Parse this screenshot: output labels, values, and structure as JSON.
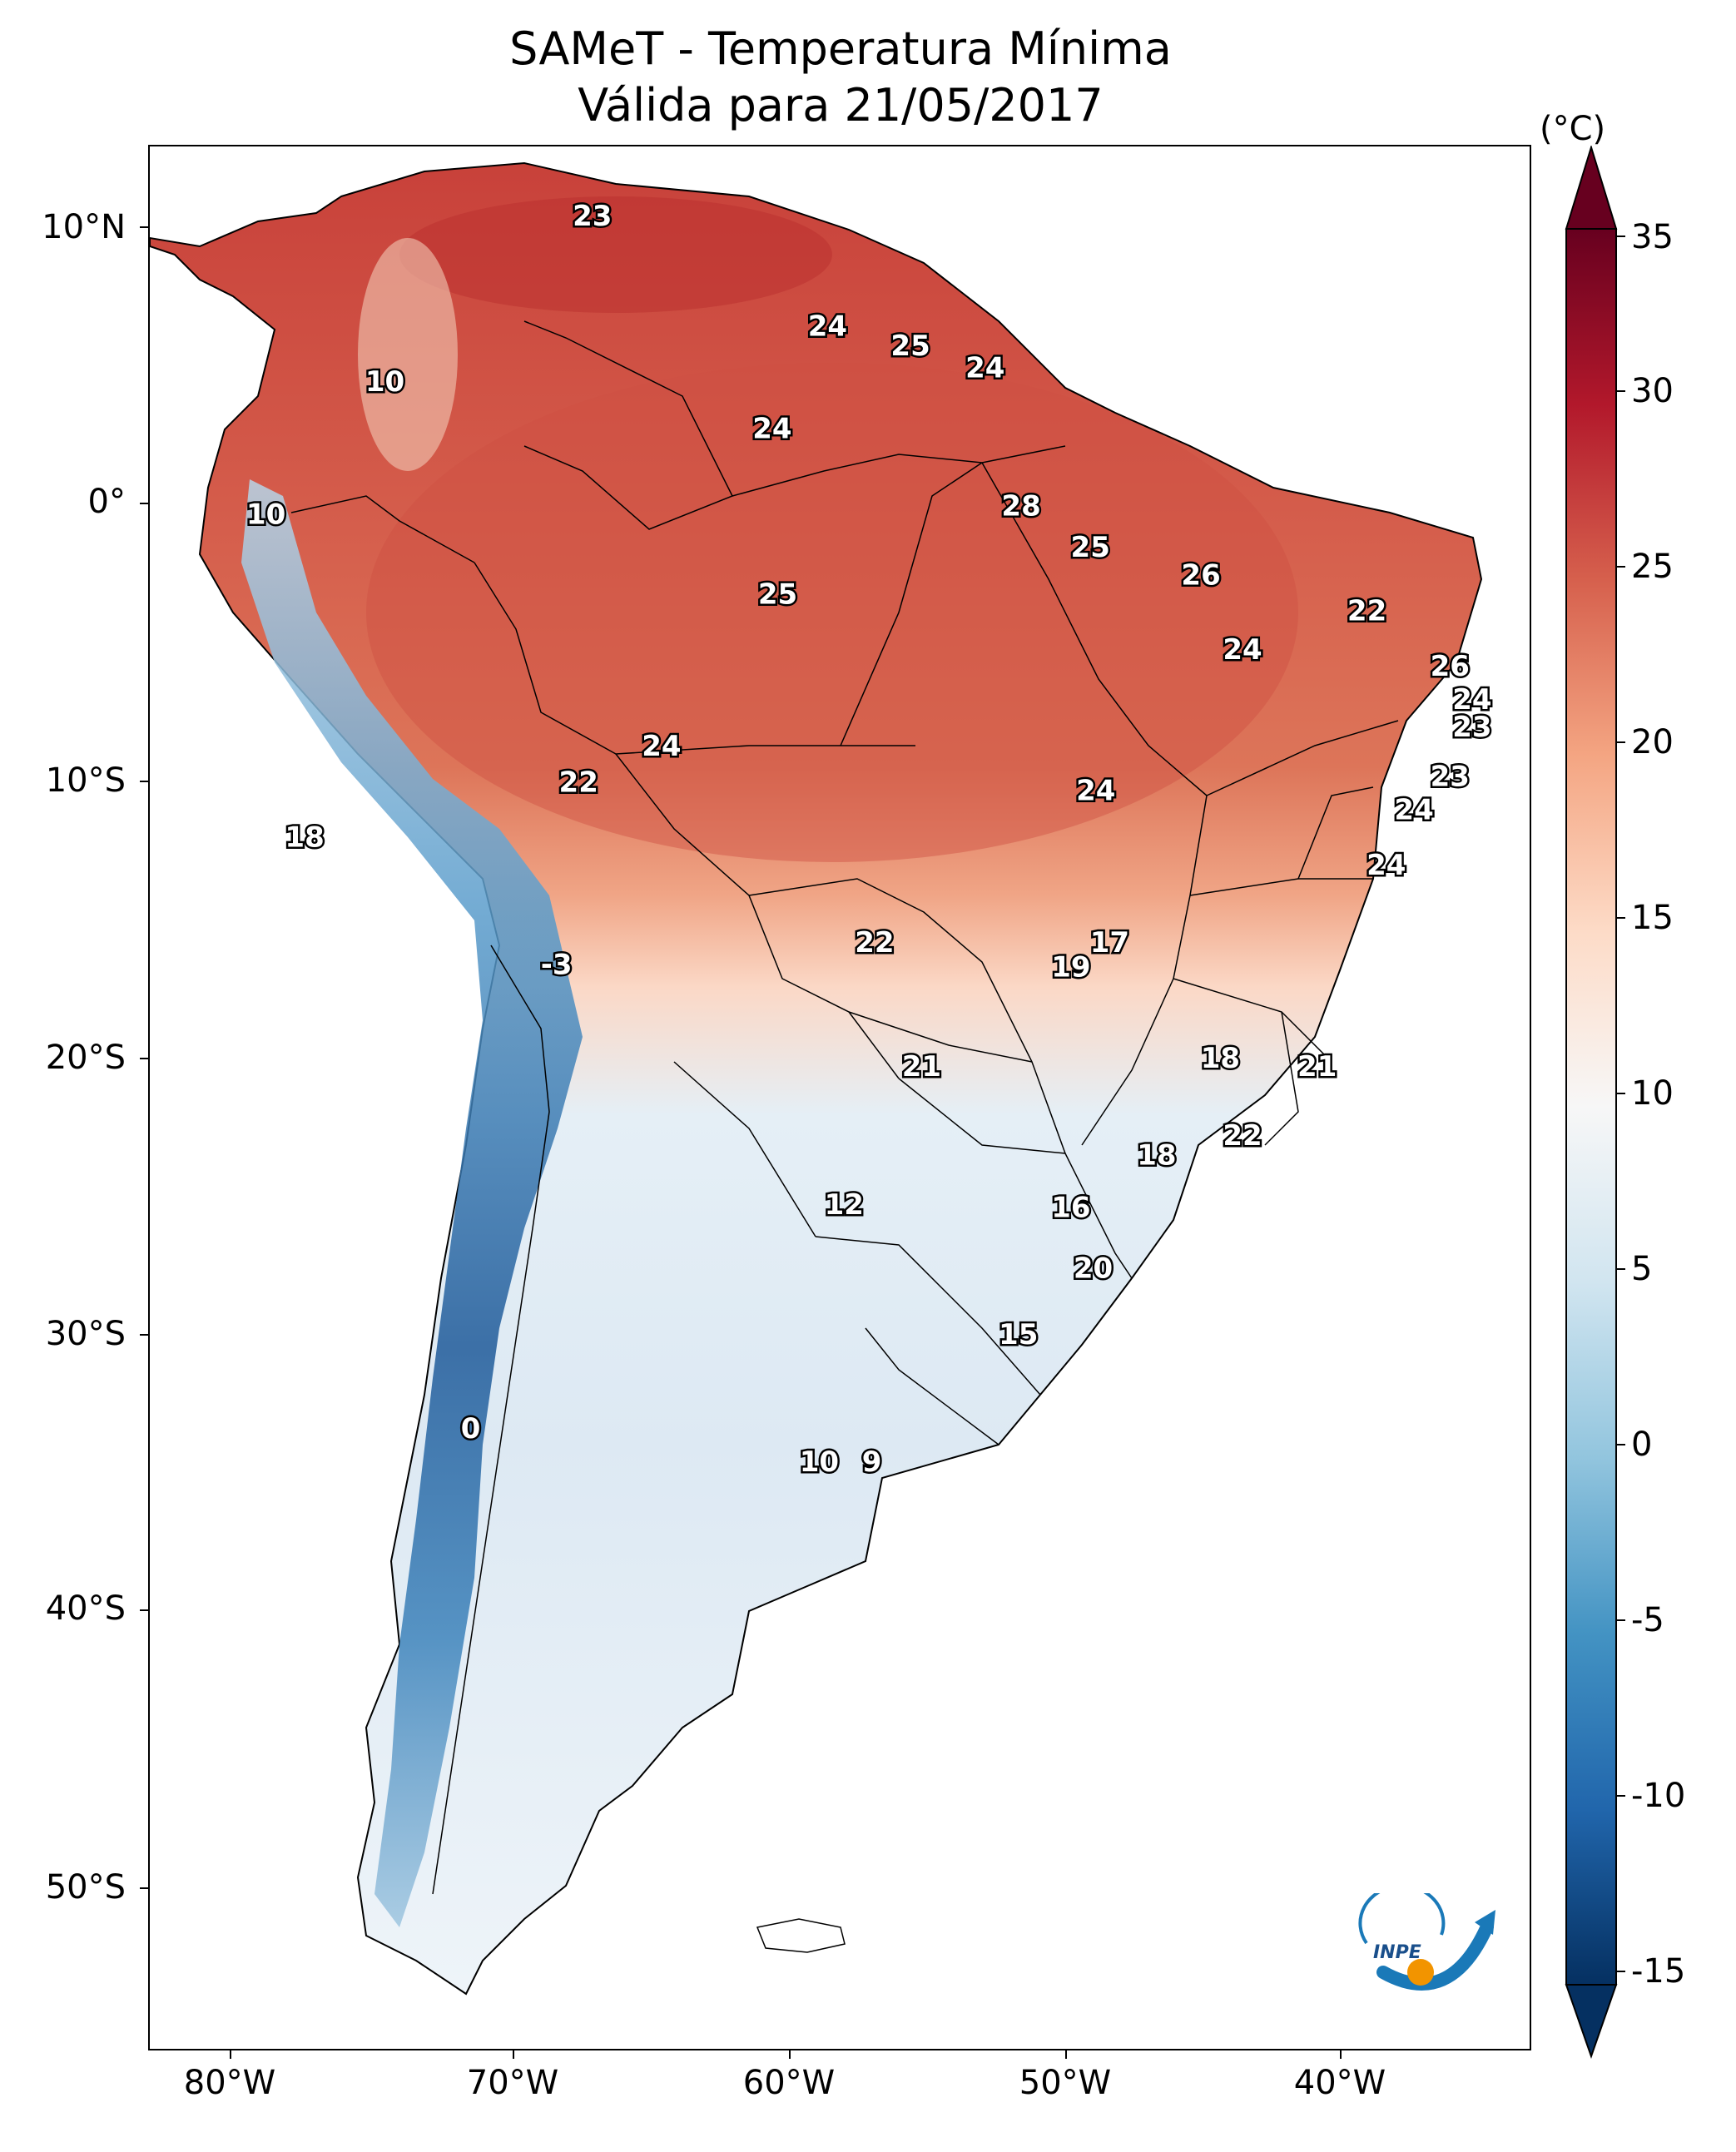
{
  "title_line1": "SAMeT - Temperatura Mínima",
  "title_line2": "Válida para 21/05/2017",
  "lat_ticks": [
    "10°N",
    "0°",
    "10°S",
    "20°S",
    "30°S",
    "40°S",
    "50°S"
  ],
  "lon_ticks": [
    "80°W",
    "70°W",
    "60°W",
    "50°W",
    "40°W"
  ],
  "colorbar": {
    "unit": "(°C)",
    "ticks": [
      "35",
      "30",
      "25",
      "20",
      "15",
      "10",
      "5",
      "0",
      "-5",
      "-10",
      "-15"
    ],
    "min": -15,
    "max": 35,
    "colormap": "RdBu_r",
    "colors": [
      "#053061",
      "#2166ac",
      "#4393c3",
      "#92c5de",
      "#d1e5f0",
      "#f7f7f7",
      "#fddbc7",
      "#f4a582",
      "#d6604d",
      "#b2182b",
      "#67001f"
    ]
  },
  "map": {
    "lon_range": [
      -83,
      -33
    ],
    "lat_range": [
      -56,
      13
    ],
    "points": [
      {
        "label": "23",
        "lon": -67,
        "lat": 10.5
      },
      {
        "label": "10",
        "lon": -74.5,
        "lat": 4.5
      },
      {
        "label": "24",
        "lon": -58.5,
        "lat": 6.5
      },
      {
        "label": "25",
        "lon": -55.5,
        "lat": 5.8
      },
      {
        "label": "24",
        "lon": -52.8,
        "lat": 5
      },
      {
        "label": "24",
        "lon": -60.5,
        "lat": 2.8
      },
      {
        "label": "10",
        "lon": -78.8,
        "lat": -0.3
      },
      {
        "label": "28",
        "lon": -51.5,
        "lat": 0
      },
      {
        "label": "25",
        "lon": -49,
        "lat": -1.5
      },
      {
        "label": "26",
        "lon": -45,
        "lat": -2.5
      },
      {
        "label": "22",
        "lon": -39,
        "lat": -3.8
      },
      {
        "label": "25",
        "lon": -60.3,
        "lat": -3.2
      },
      {
        "label": "24",
        "lon": -43.5,
        "lat": -5.2
      },
      {
        "label": "26",
        "lon": -36,
        "lat": -5.8
      },
      {
        "label": "24",
        "lon": -35.2,
        "lat": -7
      },
      {
        "label": "23",
        "lon": -35.2,
        "lat": -8
      },
      {
        "label": "24",
        "lon": -64.5,
        "lat": -8.7
      },
      {
        "label": "22",
        "lon": -67.5,
        "lat": -10
      },
      {
        "label": "24",
        "lon": -48.8,
        "lat": -10.3
      },
      {
        "label": "23",
        "lon": -36,
        "lat": -9.8
      },
      {
        "label": "24",
        "lon": -37.3,
        "lat": -11
      },
      {
        "label": "18",
        "lon": -77.4,
        "lat": -12
      },
      {
        "label": "24",
        "lon": -38.3,
        "lat": -13
      },
      {
        "label": "22",
        "lon": -56.8,
        "lat": -15.8
      },
      {
        "label": "17",
        "lon": -48.3,
        "lat": -15.8
      },
      {
        "label": "19",
        "lon": -49.7,
        "lat": -16.7
      },
      {
        "label": "-3",
        "lon": -68.3,
        "lat": -16.6
      },
      {
        "label": "21",
        "lon": -55.1,
        "lat": -20.3
      },
      {
        "label": "18",
        "lon": -44.3,
        "lat": -20
      },
      {
        "label": "21",
        "lon": -40.8,
        "lat": -20.3
      },
      {
        "label": "22",
        "lon": -43.5,
        "lat": -22.8
      },
      {
        "label": "18",
        "lon": -46.6,
        "lat": -23.5
      },
      {
        "label": "12",
        "lon": -57.9,
        "lat": -25.3
      },
      {
        "label": "16",
        "lon": -49.7,
        "lat": -25.4
      },
      {
        "label": "20",
        "lon": -48.9,
        "lat": -27.6
      },
      {
        "label": "15",
        "lon": -51.6,
        "lat": -30
      },
      {
        "label": "0",
        "lon": -71.4,
        "lat": -33.4
      },
      {
        "label": "10",
        "lon": -58.8,
        "lat": -34.6
      },
      {
        "label": "9",
        "lon": -56.9,
        "lat": -34.6
      }
    ]
  },
  "logo_text": "INPE"
}
